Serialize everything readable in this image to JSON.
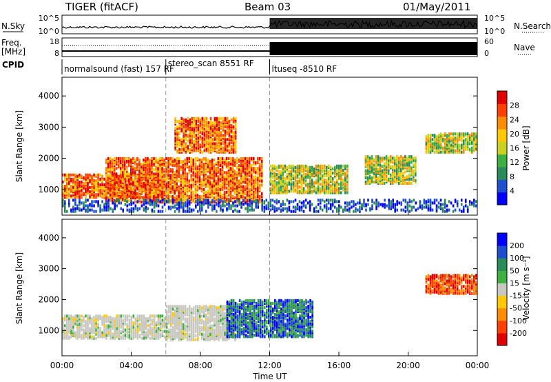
{
  "header": {
    "station": "TIGER (fitACF)",
    "beam": "Beam 03",
    "date": "01/May/2011"
  },
  "top_panel": {
    "left_label": "N.Sky",
    "right_label": "N.Search",
    "left_ticks": [
      "10^5",
      "10^0"
    ],
    "right_ticks": [
      "10^5",
      "10^0"
    ]
  },
  "freq_panel": {
    "left_label": "Freq.",
    "left_unit": "[MHz]",
    "left_ticks": [
      "18",
      "8"
    ],
    "right_label": "Nave",
    "right_ticks": [
      "60",
      "0"
    ]
  },
  "cpid": {
    "label": "CPID",
    "segments": [
      {
        "start_hour": 0,
        "end_hour": 6,
        "text": "normalsound (fast) 157 RF"
      },
      {
        "start_hour": 6,
        "end_hour": 12,
        "text": "stereo_scan 8551 RF"
      },
      {
        "start_hour": 12,
        "end_hour": 24,
        "text": "ltuseq -8510 RF"
      }
    ]
  },
  "chart_data": [
    {
      "type": "heatmap",
      "quantity": "Power",
      "ylabel": "Slant Range [km]",
      "ylim": [
        180,
        4600
      ],
      "yticks": [
        1000,
        2000,
        3000,
        4000
      ],
      "xlim": [
        0,
        24
      ],
      "colorbar": {
        "label": "Power [dB]",
        "ticks": [
          "28",
          "24",
          "20",
          "16",
          "12",
          "8",
          "4"
        ],
        "colors": [
          "#0000ff",
          "#1f4fd0",
          "#2a8a5a",
          "#3cb042",
          "#c8d21e",
          "#ffc800",
          "#ff8c00",
          "#ff4000",
          "#e00000"
        ]
      },
      "bands": [
        {
          "t0": 0.0,
          "t1": 6.0,
          "r0": 750,
          "r1": 1500,
          "power": "high"
        },
        {
          "t0": 2.5,
          "t1": 11.5,
          "r0": 600,
          "r1": 2000,
          "power": "high"
        },
        {
          "t0": 6.5,
          "t1": 10.0,
          "r0": 2200,
          "r1": 3300,
          "power": "high"
        },
        {
          "t0": 12.0,
          "t1": 16.5,
          "r0": 900,
          "r1": 1800,
          "power": "mixed"
        },
        {
          "t0": 17.5,
          "t1": 20.5,
          "r0": 1200,
          "r1": 2100,
          "power": "mixed"
        },
        {
          "t0": 21.0,
          "t1": 24.0,
          "r0": 2200,
          "r1": 2800,
          "power": "mixed"
        },
        {
          "t0": 0.0,
          "t1": 24.0,
          "r0": 300,
          "r1": 700,
          "power": "low"
        }
      ]
    },
    {
      "type": "heatmap",
      "quantity": "Velocity",
      "ylabel": "Slant Range [km]",
      "ylim": [
        180,
        4600
      ],
      "yticks": [
        1000,
        2000,
        3000,
        4000
      ],
      "xlim": [
        0,
        24
      ],
      "xticks": [
        "00:00",
        "04:00",
        "08:00",
        "12:00",
        "16:00",
        "20:00",
        "00:00"
      ],
      "xlabel": "Time UT",
      "colorbar": {
        "label": "Velocity [m s⁻¹]",
        "ticks": [
          "200",
          "100",
          "50",
          "15",
          "-15",
          "-50",
          "-100",
          "-200"
        ],
        "colors": [
          "#e00000",
          "#ff4000",
          "#ff8c00",
          "#ffc800",
          "#c8c8c0",
          "#3cb042",
          "#2a8a5a",
          "#1f4fd0",
          "#0000ff"
        ]
      },
      "bands": [
        {
          "t0": 0.0,
          "t1": 6.0,
          "r0": 750,
          "r1": 1500,
          "velocity": "near-zero"
        },
        {
          "t0": 6.0,
          "t1": 10.0,
          "r0": 700,
          "r1": 1800,
          "velocity": "near-zero"
        },
        {
          "t0": 9.5,
          "t1": 14.5,
          "r0": 800,
          "r1": 2000,
          "velocity": "positive"
        },
        {
          "t0": 21.0,
          "t1": 24.0,
          "r0": 2200,
          "r1": 2800,
          "velocity": "negative"
        }
      ]
    }
  ]
}
